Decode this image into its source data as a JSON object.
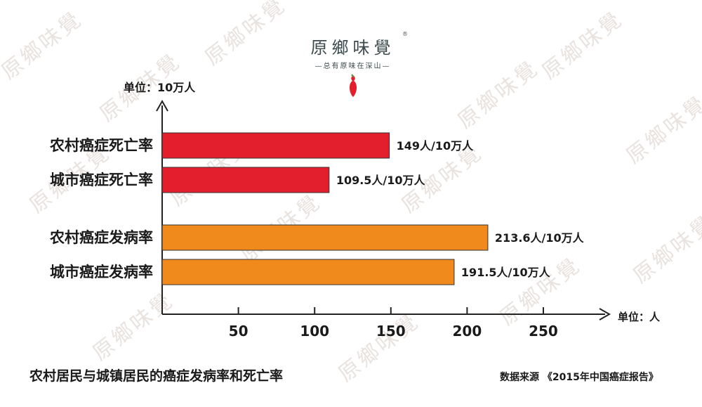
{
  "logo": {
    "name": "原鄉味覺",
    "registered": "®",
    "slogan": "—总有原味在深山—"
  },
  "watermark_text": "原鄉味覺",
  "unit_top": "单位：10万人",
  "unit_x": "单位：人",
  "title": "农村居民与城镇居民的癌症发病率和死亡率",
  "source": "数据来源 《2015年中国癌症报告》",
  "colors": {
    "death": "#e31e2d",
    "incidence": "#f18a1c",
    "axis": "#222222"
  },
  "chart_data": {
    "type": "bar",
    "orientation": "horizontal",
    "categories": [
      "农村癌症死亡率",
      "城市癌症死亡率",
      "农村癌症发病率",
      "城市癌症发病率"
    ],
    "values": [
      149,
      109.5,
      213.6,
      191.5
    ],
    "value_labels": [
      "149人/10万人",
      "109.5人/10万人",
      "213.6人/10万人",
      "191.5人/10万人"
    ],
    "bar_colors": [
      "#e31e2d",
      "#e31e2d",
      "#f18a1c",
      "#f18a1c"
    ],
    "xticks": [
      50,
      100,
      150,
      200,
      250
    ],
    "xlim": [
      0,
      285
    ],
    "grid": false
  }
}
